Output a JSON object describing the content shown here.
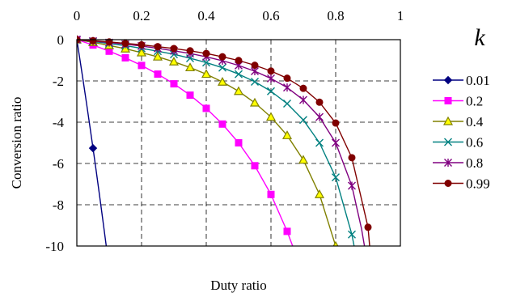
{
  "chart_data": {
    "type": "line",
    "xlabel": "Duty ratio",
    "ylabel": "Conversion ratio",
    "xlim": [
      0,
      1
    ],
    "ylim": [
      -10,
      0
    ],
    "x_ticks": [
      "0",
      "0.2",
      "0.4",
      "0.6",
      "0.8",
      "1"
    ],
    "y_ticks": [
      "0",
      "-2",
      "-4",
      "-6",
      "-8",
      "-10"
    ],
    "x_axis_position": "top",
    "grid": "dashed",
    "legend_title": "k",
    "legend_position": "right",
    "series": [
      {
        "name": "0.01",
        "color": "#000080",
        "marker": "diamond",
        "x": [
          0,
          0.05
        ],
        "y": [
          0,
          -5.26
        ],
        "curve_x": [
          0,
          0.01,
          0.02,
          0.03,
          0.04,
          0.05,
          0.06,
          0.07,
          0.08,
          0.09,
          0.095
        ],
        "curve_y": [
          0,
          -1.01,
          -2.04,
          -3.09,
          -4.17,
          -5.26,
          -6.38,
          -7.53,
          -8.7,
          -9.89,
          -10.5
        ]
      },
      {
        "name": "0.2",
        "color": "#ff00ff",
        "marker": "square",
        "x": [
          0,
          0.05,
          0.1,
          0.15,
          0.2,
          0.25,
          0.3,
          0.35,
          0.4,
          0.45,
          0.5,
          0.55,
          0.6,
          0.65
        ],
        "y": [
          0,
          -0.26,
          -0.56,
          -0.88,
          -1.25,
          -1.67,
          -2.14,
          -2.69,
          -3.33,
          -4.09,
          -5.0,
          -6.11,
          -7.5,
          -9.29
        ],
        "curve_x": [
          0,
          0.05,
          0.1,
          0.15,
          0.2,
          0.25,
          0.3,
          0.35,
          0.4,
          0.45,
          0.5,
          0.55,
          0.6,
          0.65,
          0.667
        ],
        "curve_y": [
          0,
          -0.26,
          -0.56,
          -0.88,
          -1.25,
          -1.67,
          -2.14,
          -2.69,
          -3.33,
          -4.09,
          -5.0,
          -6.11,
          -7.5,
          -9.29,
          -10.0
        ]
      },
      {
        "name": "0.4",
        "color": "#808000",
        "marker": "triangle",
        "x": [
          0,
          0.05,
          0.1,
          0.15,
          0.2,
          0.25,
          0.3,
          0.35,
          0.4,
          0.45,
          0.5,
          0.55,
          0.6,
          0.65,
          0.7,
          0.75,
          0.8
        ],
        "y": [
          0,
          -0.13,
          -0.28,
          -0.44,
          -0.63,
          -0.83,
          -1.07,
          -1.35,
          -1.67,
          -2.05,
          -2.5,
          -3.06,
          -3.75,
          -4.64,
          -5.83,
          -7.5,
          -10.0
        ],
        "curve_x": [
          0,
          0.05,
          0.1,
          0.15,
          0.2,
          0.25,
          0.3,
          0.35,
          0.4,
          0.45,
          0.5,
          0.55,
          0.6,
          0.65,
          0.7,
          0.75,
          0.8
        ],
        "curve_y": [
          0,
          -0.13,
          -0.28,
          -0.44,
          -0.63,
          -0.83,
          -1.07,
          -1.35,
          -1.67,
          -2.05,
          -2.5,
          -3.06,
          -3.75,
          -4.64,
          -5.83,
          -7.5,
          -10.0
        ]
      },
      {
        "name": "0.6",
        "color": "#008080",
        "marker": "x",
        "x": [
          0,
          0.05,
          0.1,
          0.15,
          0.2,
          0.25,
          0.3,
          0.35,
          0.4,
          0.45,
          0.5,
          0.55,
          0.6,
          0.65,
          0.7,
          0.75,
          0.8,
          0.85
        ],
        "y": [
          0,
          -0.09,
          -0.19,
          -0.29,
          -0.42,
          -0.56,
          -0.71,
          -0.9,
          -1.11,
          -1.36,
          -1.67,
          -2.04,
          -2.5,
          -3.1,
          -3.89,
          -5.0,
          -6.67,
          -9.44
        ],
        "curve_x": [
          0,
          0.05,
          0.1,
          0.15,
          0.2,
          0.25,
          0.3,
          0.35,
          0.4,
          0.45,
          0.5,
          0.55,
          0.6,
          0.65,
          0.7,
          0.75,
          0.8,
          0.85,
          0.857
        ],
        "curve_y": [
          0,
          -0.09,
          -0.19,
          -0.29,
          -0.42,
          -0.56,
          -0.71,
          -0.9,
          -1.11,
          -1.36,
          -1.67,
          -2.04,
          -2.5,
          -3.1,
          -3.89,
          -5.0,
          -6.67,
          -9.44,
          -10.0
        ]
      },
      {
        "name": "0.8",
        "color": "#800080",
        "marker": "star",
        "x": [
          0,
          0.05,
          0.1,
          0.15,
          0.2,
          0.25,
          0.3,
          0.35,
          0.4,
          0.45,
          0.5,
          0.55,
          0.6,
          0.65,
          0.7,
          0.75,
          0.8,
          0.85
        ],
        "y": [
          0,
          -0.07,
          -0.14,
          -0.22,
          -0.31,
          -0.42,
          -0.54,
          -0.67,
          -0.83,
          -1.02,
          -1.25,
          -1.53,
          -1.88,
          -2.32,
          -2.92,
          -3.75,
          -5.0,
          -7.08
        ],
        "curve_x": [
          0,
          0.05,
          0.1,
          0.15,
          0.2,
          0.25,
          0.3,
          0.35,
          0.4,
          0.45,
          0.5,
          0.55,
          0.6,
          0.65,
          0.7,
          0.75,
          0.8,
          0.85,
          0.88,
          0.889
        ],
        "curve_y": [
          0,
          -0.07,
          -0.14,
          -0.22,
          -0.31,
          -0.42,
          -0.54,
          -0.67,
          -0.83,
          -1.02,
          -1.25,
          -1.53,
          -1.88,
          -2.32,
          -2.92,
          -3.75,
          -5.0,
          -7.08,
          -9.17,
          -10.0
        ]
      },
      {
        "name": "0.99",
        "color": "#800000",
        "marker": "circle",
        "x": [
          0,
          0.05,
          0.1,
          0.15,
          0.2,
          0.25,
          0.3,
          0.35,
          0.4,
          0.45,
          0.5,
          0.55,
          0.6,
          0.65,
          0.7,
          0.75,
          0.8,
          0.85,
          0.9
        ],
        "y": [
          0,
          -0.05,
          -0.11,
          -0.18,
          -0.25,
          -0.34,
          -0.43,
          -0.54,
          -0.67,
          -0.83,
          -1.01,
          -1.24,
          -1.52,
          -1.87,
          -2.36,
          -3.03,
          -4.04,
          -5.72,
          -9.09
        ],
        "curve_x": [
          0,
          0.05,
          0.1,
          0.15,
          0.2,
          0.25,
          0.3,
          0.35,
          0.4,
          0.45,
          0.5,
          0.55,
          0.6,
          0.65,
          0.7,
          0.75,
          0.8,
          0.85,
          0.9,
          0.905
        ],
        "curve_y": [
          0,
          -0.05,
          -0.11,
          -0.18,
          -0.25,
          -0.34,
          -0.43,
          -0.54,
          -0.67,
          -0.83,
          -1.01,
          -1.24,
          -1.52,
          -1.87,
          -2.36,
          -3.03,
          -4.04,
          -5.72,
          -9.09,
          -10.0
        ]
      }
    ]
  }
}
